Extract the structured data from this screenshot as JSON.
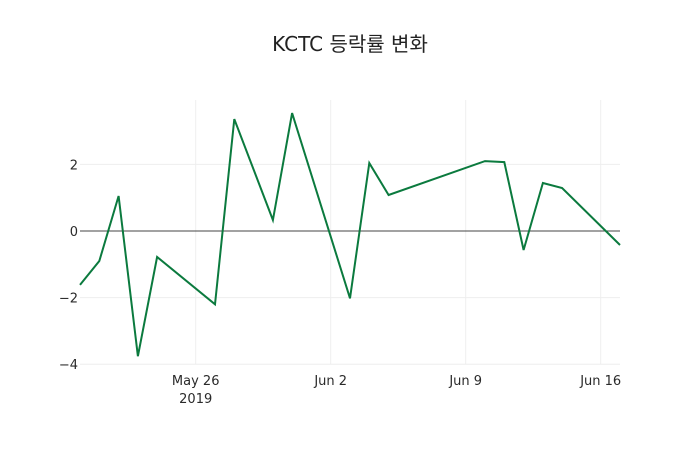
{
  "chart_data": {
    "type": "line",
    "title": "KCTC 등락률 변화",
    "xlabel": "",
    "ylabel": "",
    "ylim": [
      -4.1,
      4.0
    ],
    "yticks": [
      -4,
      -2,
      0,
      2
    ],
    "ytick_labels": [
      "−4",
      "−2",
      "0",
      "2"
    ],
    "xticks": [
      "2019-05-26",
      "2019-06-02",
      "2019-06-09",
      "2019-06-16"
    ],
    "xtick_labels": [
      "May 26\n2019",
      "Jun 2",
      "Jun 9",
      "Jun 16"
    ],
    "xlim": [
      "2019-05-20",
      "2019-06-17"
    ],
    "grid": true,
    "zero_line": true,
    "legend": "none",
    "line_color": "#0b7a3e",
    "series": [
      {
        "name": "등락률",
        "x": [
          "2019-05-20",
          "2019-05-21",
          "2019-05-22",
          "2019-05-23",
          "2019-05-24",
          "2019-05-27",
          "2019-05-28",
          "2019-05-30",
          "2019-05-31",
          "2019-06-03",
          "2019-06-04",
          "2019-06-05",
          "2019-06-10",
          "2019-06-11",
          "2019-06-12",
          "2019-06-13",
          "2019-06-14",
          "2019-06-17"
        ],
        "values": [
          -1.62,
          -0.9,
          1.05,
          -3.76,
          -0.78,
          -2.2,
          3.36,
          0.33,
          3.54,
          -2.02,
          2.04,
          1.08,
          2.1,
          2.07,
          -0.57,
          1.44,
          1.29,
          -0.42
        ]
      }
    ]
  }
}
